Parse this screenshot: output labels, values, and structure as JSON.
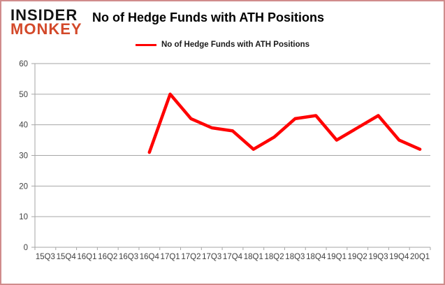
{
  "logo": {
    "line1": "INSIDER",
    "line2": "MONKEY"
  },
  "header": {
    "title": "No of Hedge Funds with ATH Positions"
  },
  "legend": {
    "label": "No of Hedge Funds with ATH Positions"
  },
  "chart_data": {
    "type": "line",
    "title": "No of Hedge Funds with ATH Positions",
    "legend_position": "top",
    "grid": true,
    "categories": [
      "15Q3",
      "15Q4",
      "16Q1",
      "16Q2",
      "16Q3",
      "16Q4",
      "17Q1",
      "17Q2",
      "17Q3",
      "17Q4",
      "18Q1",
      "18Q2",
      "18Q3",
      "18Q4",
      "19Q1",
      "19Q2",
      "19Q3",
      "19Q4",
      "20Q1"
    ],
    "series": [
      {
        "name": "No of Hedge Funds with ATH Positions",
        "values": [
          null,
          null,
          null,
          null,
          null,
          31,
          50,
          42,
          39,
          38,
          32,
          36,
          42,
          43,
          35,
          39,
          43,
          35,
          32
        ]
      }
    ],
    "xlabel": "",
    "ylabel": "",
    "ylim": [
      0,
      60
    ],
    "yticks": [
      0,
      10,
      20,
      30,
      40,
      50,
      60
    ],
    "line_color": "#ff0000",
    "gridline_color": "#a6a6a6",
    "axis_color": "#a6a6a6",
    "tick_label_color": "#404040"
  }
}
